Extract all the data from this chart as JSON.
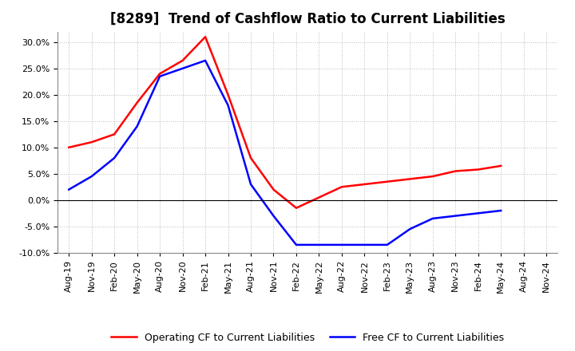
{
  "title": "[8289]  Trend of Cashflow Ratio to Current Liabilities",
  "x_labels": [
    "Aug-19",
    "Nov-19",
    "Feb-20",
    "May-20",
    "Aug-20",
    "Nov-20",
    "Feb-21",
    "May-21",
    "Aug-21",
    "Nov-21",
    "Feb-22",
    "May-22",
    "Aug-22",
    "Nov-22",
    "Feb-23",
    "May-23",
    "Aug-23",
    "Nov-23",
    "Feb-24",
    "May-24",
    "Aug-24",
    "Nov-24"
  ],
  "operating_cf": [
    10.0,
    11.0,
    12.5,
    18.5,
    24.0,
    26.5,
    31.0,
    20.0,
    8.0,
    2.0,
    -1.5,
    0.5,
    2.5,
    3.0,
    3.5,
    4.0,
    4.5,
    5.5,
    5.8,
    6.5,
    null,
    null
  ],
  "free_cf": [
    2.0,
    4.5,
    8.0,
    14.0,
    23.5,
    25.0,
    26.5,
    18.0,
    3.0,
    -3.0,
    -8.5,
    -8.5,
    -8.5,
    -8.5,
    -8.5,
    -5.5,
    -3.5,
    -3.0,
    -2.5,
    -2.0,
    null,
    null
  ],
  "operating_color": "#FF0000",
  "free_color": "#0000FF",
  "ylim": [
    -10.0,
    32.0
  ],
  "yticks": [
    -10.0,
    -5.0,
    0.0,
    5.0,
    10.0,
    15.0,
    20.0,
    25.0,
    30.0
  ],
  "bg_color": "#FFFFFF",
  "plot_bg_color": "#FFFFFF",
  "grid_color": "#AAAAAA",
  "title_fontsize": 12,
  "tick_fontsize": 8,
  "legend_fontsize": 9,
  "legend_operating": "Operating CF to Current Liabilities",
  "legend_free": "Free CF to Current Liabilities"
}
